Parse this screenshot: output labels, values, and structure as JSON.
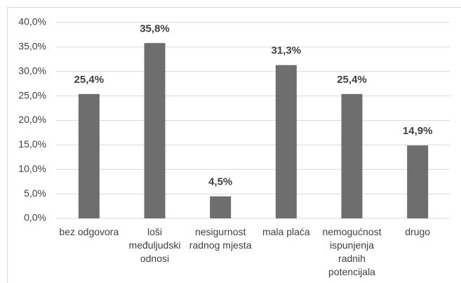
{
  "chart_data": {
    "type": "bar",
    "categories": [
      "bez odgovora",
      "loši međuljudski odnosi",
      "nesigurnost radnog mjesta",
      "mala plaća",
      "nemogućnost ispunjenja radnih potencijala",
      "drugo"
    ],
    "values": [
      25.4,
      35.8,
      4.5,
      31.3,
      25.4,
      14.9
    ],
    "value_labels": [
      "25,4%",
      "35,8%",
      "4,5%",
      "31,3%",
      "25,4%",
      "14,9%"
    ],
    "color": "#6e6e6e",
    "ylim": [
      0,
      40
    ],
    "yticks": [
      {
        "value": 0,
        "label": "0,0%"
      },
      {
        "value": 5,
        "label": "5,0%"
      },
      {
        "value": 10,
        "label": "10,0%"
      },
      {
        "value": 15,
        "label": "15,0%"
      },
      {
        "value": 20,
        "label": "20,0%"
      },
      {
        "value": 25,
        "label": "25,0%"
      },
      {
        "value": 30,
        "label": "30,0%"
      },
      {
        "value": 35,
        "label": "35,0%"
      },
      {
        "value": 40,
        "label": "40,0%"
      }
    ],
    "grid": true
  }
}
